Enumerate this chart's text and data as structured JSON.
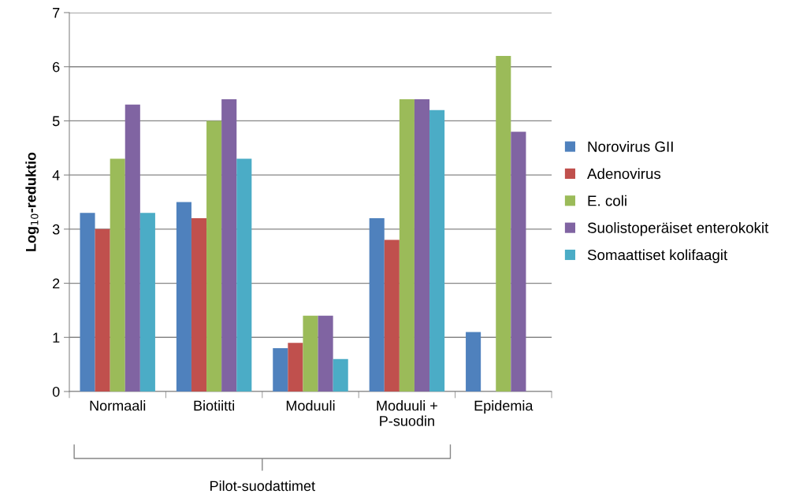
{
  "chart_data": {
    "type": "bar",
    "ylabel": "Log$_{10}$-reduktio",
    "categories": [
      "Normaali",
      "Biotiitti",
      "Moduuli",
      "Moduuli +\nP-suodin",
      "Epidemia"
    ],
    "series": [
      {
        "name": "Norovirus GII",
        "color": "#4f81bd",
        "values": [
          3.3,
          3.5,
          0.8,
          3.2,
          1.1
        ]
      },
      {
        "name": "Adenovirus",
        "color": "#c0504d",
        "values": [
          3.0,
          3.2,
          0.9,
          2.8,
          null
        ]
      },
      {
        "name": "E. coli",
        "color": "#9bbb59",
        "values": [
          4.3,
          5.0,
          1.4,
          5.4,
          6.2
        ]
      },
      {
        "name": "Suolistoperäiset enterokokit",
        "color": "#8064a2",
        "values": [
          5.3,
          5.4,
          1.4,
          5.4,
          4.8
        ]
      },
      {
        "name": "Somaattiset kolifaagit",
        "color": "#4bacc6",
        "values": [
          3.3,
          4.3,
          0.6,
          5.2,
          null
        ]
      }
    ],
    "ylim": [
      0,
      7
    ],
    "yticks": [
      0,
      1,
      2,
      3,
      4,
      5,
      6,
      7
    ],
    "grid": "y",
    "legend": "right",
    "annotations": [
      "Pilot-suodattimet"
    ]
  }
}
